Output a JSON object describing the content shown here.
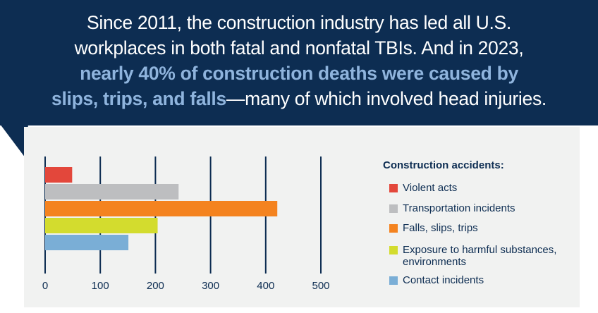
{
  "headline": {
    "line1": "Since 2011, the construction industry has led all U.S.",
    "line2": "workplaces in both fatal and nonfatal TBIs. And in 2023,",
    "highlight_line3": "nearly 40% of construction deaths were caused by",
    "highlight_line4": "slips, trips, and falls",
    "line4_rest": "—many of which involved head injuries."
  },
  "colors": {
    "banner": "#0d2d52",
    "highlight": "#8fb4dd",
    "panel": "#f1f2f1",
    "gridline": "#0d2d52"
  },
  "chart_data": {
    "type": "bar",
    "orientation": "horizontal",
    "title": "",
    "xlabel": "",
    "ylabel": "",
    "xlim": [
      0,
      500
    ],
    "xticks": [
      0,
      100,
      200,
      300,
      400,
      500
    ],
    "grid": true,
    "legend_title": "Construction accidents:",
    "legend_position": "right",
    "series": [
      {
        "name": "Violent acts",
        "value": 49,
        "color": "#e3473b"
      },
      {
        "name": "Transportation incidents",
        "value": 242,
        "color": "#bdbec0"
      },
      {
        "name": "Falls, slips, trips",
        "value": 421,
        "color": "#f4831f"
      },
      {
        "name": "Exposure to harmful substances, environments",
        "value": 204,
        "color": "#d3dc2e"
      },
      {
        "name": "Contact incidents",
        "value": 151,
        "color": "#7aaed6"
      }
    ]
  }
}
